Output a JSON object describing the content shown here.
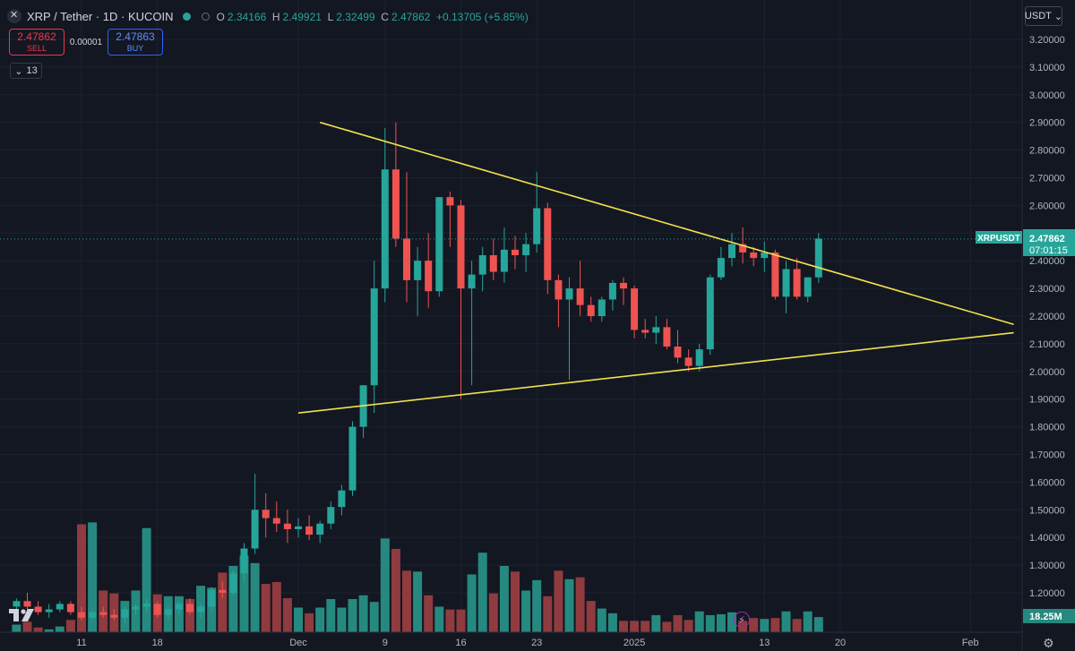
{
  "header": {
    "symbol_title": "XRP / Tether · 1D · KUCOIN",
    "ohlc": [
      {
        "k": "O",
        "v": "2.34166"
      },
      {
        "k": "H",
        "v": "2.49921"
      },
      {
        "k": "L",
        "v": "2.32499"
      },
      {
        "k": "C",
        "v": "2.47862"
      }
    ],
    "change": "+0.13705 (+5.85%)"
  },
  "trade": {
    "sell_price": "2.47862",
    "sell_label": "SELL",
    "spread": "0.00001",
    "buy_price": "2.47863",
    "buy_label": "BUY"
  },
  "indicators_count": "13",
  "currency": "USDT",
  "price_tag": {
    "symbol": "XRPUSDT",
    "price": "2.47862",
    "countdown": "07:01:15"
  },
  "volume_tag": "18.25M",
  "colors": {
    "bg": "#131722",
    "up": "#26a69a",
    "down": "#ef5350",
    "up_vol": "#26897f",
    "down_vol": "#8f3b3f",
    "trendline": "#f2e14c",
    "grid": "#1e222d",
    "text": "#b2b5be"
  },
  "icons": {
    "symbol": "xrp-logo-icon",
    "market_open": "green-dot-icon",
    "collapse": "chevron-down-icon",
    "currency_dropdown": "chevron-down-icon",
    "flash": "lightning-icon",
    "settings": "gear-icon",
    "logo": "tradingview-logo-icon"
  },
  "chart_data": {
    "type": "candlestick",
    "ylim": [
      1.05,
      3.25
    ],
    "y_ticks": [
      "3.20000",
      "3.10000",
      "3.00000",
      "2.90000",
      "2.80000",
      "2.70000",
      "2.60000",
      "2.50000",
      "2.40000",
      "2.30000",
      "2.20000",
      "2.10000",
      "2.00000",
      "1.90000",
      "1.80000",
      "1.70000",
      "1.60000",
      "1.50000",
      "1.40000",
      "1.30000",
      "1.20000"
    ],
    "y_tick_values": [
      3.2,
      3.1,
      3.0,
      2.9,
      2.8,
      2.7,
      2.6,
      2.5,
      2.4,
      2.3,
      2.2,
      2.1,
      2.0,
      1.9,
      1.8,
      1.7,
      1.6,
      1.5,
      1.4,
      1.3,
      1.2
    ],
    "x_ticks": [
      {
        "label": "11",
        "day": 0
      },
      {
        "label": "18",
        "day": 7
      },
      {
        "label": "Dec",
        "day": 20
      },
      {
        "label": "9",
        "day": 28
      },
      {
        "label": "16",
        "day": 35
      },
      {
        "label": "23",
        "day": 42
      },
      {
        "label": "2025",
        "day": 51
      },
      {
        "label": "13",
        "day": 63
      },
      {
        "label": "20",
        "day": 70
      },
      {
        "label": "Feb",
        "day": 82
      }
    ],
    "candles_start_day": -6,
    "candles": [
      [
        1.15,
        1.18,
        1.12,
        1.17
      ],
      [
        1.17,
        1.2,
        1.13,
        1.15
      ],
      [
        1.15,
        1.17,
        1.12,
        1.13
      ],
      [
        1.13,
        1.16,
        1.11,
        1.14
      ],
      [
        1.14,
        1.17,
        1.13,
        1.16
      ],
      [
        1.16,
        1.17,
        1.12,
        1.13
      ],
      [
        1.13,
        1.15,
        1.1,
        1.11
      ],
      [
        1.11,
        1.14,
        1.1,
        1.13
      ],
      [
        1.13,
        1.15,
        1.11,
        1.12
      ],
      [
        1.12,
        1.14,
        1.1,
        1.11
      ],
      [
        1.11,
        1.15,
        1.09,
        1.14
      ],
      [
        1.14,
        1.16,
        1.12,
        1.15
      ],
      [
        1.15,
        1.18,
        1.13,
        1.16
      ],
      [
        1.16,
        1.17,
        1.11,
        1.12
      ],
      [
        1.12,
        1.15,
        1.1,
        1.14
      ],
      [
        1.14,
        1.17,
        1.12,
        1.16
      ],
      [
        1.16,
        1.18,
        1.12,
        1.13
      ],
      [
        1.13,
        1.16,
        1.11,
        1.15
      ],
      [
        1.15,
        1.22,
        1.13,
        1.21
      ],
      [
        1.21,
        1.24,
        1.18,
        1.2
      ],
      [
        1.2,
        1.28,
        1.19,
        1.27
      ],
      [
        1.27,
        1.38,
        1.24,
        1.36
      ],
      [
        1.36,
        1.63,
        1.34,
        1.5
      ],
      [
        1.5,
        1.56,
        1.4,
        1.47
      ],
      [
        1.47,
        1.53,
        1.42,
        1.45
      ],
      [
        1.45,
        1.5,
        1.38,
        1.43
      ],
      [
        1.43,
        1.47,
        1.4,
        1.44
      ],
      [
        1.44,
        1.48,
        1.39,
        1.41
      ],
      [
        1.41,
        1.46,
        1.38,
        1.45
      ],
      [
        1.45,
        1.53,
        1.43,
        1.51
      ],
      [
        1.51,
        1.59,
        1.48,
        1.57
      ],
      [
        1.57,
        1.82,
        1.55,
        1.8
      ],
      [
        1.8,
        1.95,
        1.76,
        1.95
      ],
      [
        1.95,
        2.4,
        1.85,
        2.3
      ],
      [
        2.3,
        2.88,
        2.25,
        2.73
      ],
      [
        2.73,
        2.9,
        2.45,
        2.48
      ],
      [
        2.48,
        2.72,
        2.25,
        2.33
      ],
      [
        2.33,
        2.45,
        2.2,
        2.4
      ],
      [
        2.4,
        2.5,
        2.23,
        2.29
      ],
      [
        2.29,
        2.63,
        2.27,
        2.63
      ],
      [
        2.63,
        2.65,
        2.45,
        2.6
      ],
      [
        2.6,
        2.62,
        1.9,
        2.3
      ],
      [
        2.3,
        2.4,
        1.95,
        2.35
      ],
      [
        2.35,
        2.45,
        2.29,
        2.42
      ],
      [
        2.42,
        2.48,
        2.33,
        2.36
      ],
      [
        2.36,
        2.52,
        2.32,
        2.44
      ],
      [
        2.44,
        2.49,
        2.37,
        2.42
      ],
      [
        2.42,
        2.5,
        2.36,
        2.46
      ],
      [
        2.46,
        2.72,
        2.43,
        2.59
      ],
      [
        2.59,
        2.61,
        2.28,
        2.33
      ],
      [
        2.33,
        2.35,
        2.16,
        2.26
      ],
      [
        2.26,
        2.34,
        1.97,
        2.3
      ],
      [
        2.3,
        2.4,
        2.2,
        2.24
      ],
      [
        2.24,
        2.27,
        2.18,
        2.2
      ],
      [
        2.2,
        2.27,
        2.18,
        2.26
      ],
      [
        2.26,
        2.33,
        2.22,
        2.32
      ],
      [
        2.32,
        2.34,
        2.24,
        2.3
      ],
      [
        2.3,
        2.31,
        2.12,
        2.15
      ],
      [
        2.15,
        2.19,
        2.12,
        2.14
      ],
      [
        2.14,
        2.2,
        2.1,
        2.16
      ],
      [
        2.16,
        2.19,
        2.08,
        2.09
      ],
      [
        2.09,
        2.15,
        2.03,
        2.05
      ],
      [
        2.05,
        2.08,
        2.0,
        2.02
      ],
      [
        2.02,
        2.1,
        2.0,
        2.08
      ],
      [
        2.08,
        2.35,
        2.06,
        2.34
      ],
      [
        2.34,
        2.45,
        2.33,
        2.41
      ],
      [
        2.41,
        2.5,
        2.38,
        2.46
      ],
      [
        2.46,
        2.52,
        2.39,
        2.43
      ],
      [
        2.43,
        2.45,
        2.38,
        2.41
      ],
      [
        2.41,
        2.47,
        2.36,
        2.43
      ],
      [
        2.43,
        2.44,
        2.26,
        2.27
      ],
      [
        2.27,
        2.4,
        2.21,
        2.37
      ],
      [
        2.37,
        2.41,
        2.26,
        2.27
      ],
      [
        2.27,
        2.33,
        2.25,
        2.34
      ],
      [
        2.34,
        2.5,
        2.32,
        2.48
      ]
    ],
    "volumes": [
      0.8,
      1.1,
      0.5,
      0.3,
      0.6,
      1.3,
      11.4,
      11.6,
      4.4,
      4.1,
      3.3,
      4.4,
      11.0,
      4.0,
      3.8,
      3.8,
      3.5,
      4.9,
      4.7,
      6.3,
      7.0,
      8.1,
      7.3,
      5.1,
      5.3,
      3.6,
      2.6,
      2.0,
      2.6,
      3.5,
      2.6,
      3.5,
      3.9,
      3.2,
      9.9,
      8.8,
      6.5,
      6.4,
      3.9,
      2.7,
      2.4,
      2.4,
      6.1,
      8.4,
      4.1,
      7.0,
      6.4,
      4.4,
      5.5,
      3.8,
      6.5,
      5.6,
      5.8,
      3.3,
      2.5,
      2.0,
      1.2,
      1.2,
      1.2,
      1.8,
      1.1,
      1.8,
      1.3,
      2.2,
      1.8,
      1.9,
      2.1,
      1.2,
      1.5,
      1.4,
      1.5,
      2.2,
      1.4,
      2.2,
      1.6
    ],
    "volume_max": 17.5,
    "trendlines": [
      {
        "from": {
          "day": 22,
          "price": 2.9
        },
        "to": {
          "day": 86,
          "price": 2.17
        }
      },
      {
        "from": {
          "day": 20,
          "price": 1.85
        },
        "to": {
          "day": 86,
          "price": 2.14
        }
      }
    ],
    "last_price": 2.47862
  }
}
